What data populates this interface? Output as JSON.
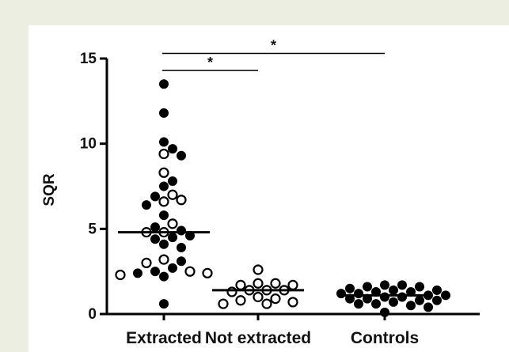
{
  "chart_data": {
    "type": "scatter",
    "title": "",
    "xlabel": "",
    "ylabel": "SQR",
    "ylim": [
      0,
      15
    ],
    "yticks": [
      0,
      5,
      10,
      15
    ],
    "grid": false,
    "categories": [
      "Extracted",
      "Not extracted",
      "Controls"
    ],
    "marker_legend": "filled and open circles (no legend shown)",
    "groups": [
      {
        "category": "Extracted",
        "median": 4.8,
        "filled": [
          13.5,
          11.8,
          10.1,
          9.7,
          9.3,
          7.8,
          7.5,
          6.9,
          6.4,
          5.8,
          5.1,
          4.9,
          4.6,
          4.5,
          4.4,
          4.1,
          3.9,
          3.1,
          2.7,
          2.5,
          2.4,
          2.2,
          0.6
        ],
        "open": [
          9.4,
          8.3,
          7.0,
          6.7,
          6.6,
          5.3,
          4.8,
          4.8,
          3.2,
          3.0,
          2.4,
          2.5,
          2.3
        ]
      },
      {
        "category": "Not extracted",
        "median": 1.4,
        "filled": [],
        "open": [
          2.6,
          1.8,
          1.8,
          1.7,
          1.7,
          1.4,
          1.4,
          1.4,
          1.3,
          1.0,
          0.9,
          0.8,
          0.7,
          0.6,
          0.6
        ]
      },
      {
        "category": "Controls",
        "median": 1.1,
        "filled": [
          1.7,
          1.7,
          1.6,
          1.6,
          1.5,
          1.4,
          1.4,
          1.3,
          1.3,
          1.2,
          1.2,
          1.1,
          1.1,
          1.0,
          1.0,
          0.9,
          0.9,
          0.8,
          0.8,
          0.7,
          0.6,
          0.6,
          0.5,
          0.4,
          0.1
        ],
        "open": []
      }
    ],
    "annotations": [
      {
        "from": "Extracted",
        "to": "Controls",
        "y": 15.3,
        "label": "*"
      },
      {
        "from": "Extracted",
        "to": "Not extracted",
        "y": 14.3,
        "label": "*"
      }
    ]
  }
}
